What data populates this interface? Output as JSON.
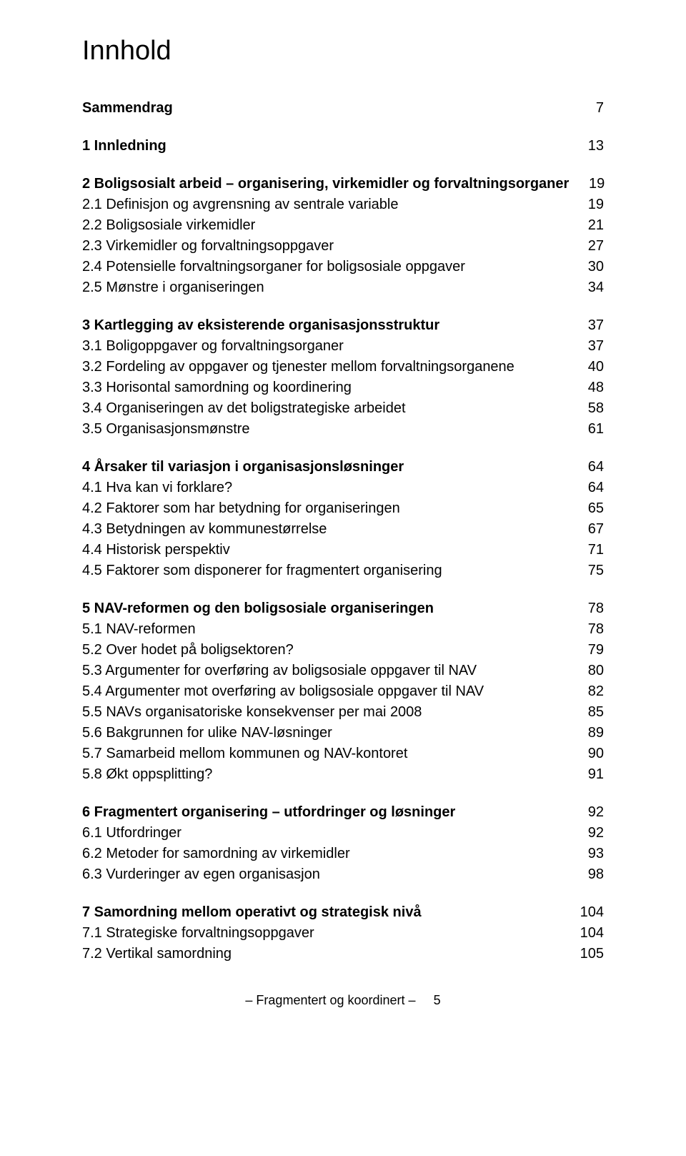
{
  "title": "Innhold",
  "footer_text": "– Fragmentert og koordinert –",
  "footer_page": "5",
  "typography": {
    "title_fontsize": 38,
    "body_fontsize": 20,
    "footer_fontsize": 18,
    "font_family": "Arial, Helvetica, sans-serif",
    "text_color": "#000000",
    "background_color": "#ffffff",
    "line_height": 1.45
  },
  "sections": [
    {
      "rows": [
        {
          "label": "Sammendrag",
          "page": "7",
          "bold": true
        }
      ]
    },
    {
      "rows": [
        {
          "label": "1 Innledning",
          "page": "13",
          "bold": true
        }
      ]
    },
    {
      "rows": [
        {
          "label": "2 Boligsosialt arbeid – organisering, virkemidler og forvaltningsorganer",
          "page": "19",
          "bold": true
        },
        {
          "label": "2.1 Definisjon og avgrensning av sentrale variable",
          "page": "19",
          "bold": false
        },
        {
          "label": "2.2 Boligsosiale virkemidler",
          "page": "21",
          "bold": false
        },
        {
          "label": "2.3 Virkemidler og forvaltningsoppgaver",
          "page": "27",
          "bold": false
        },
        {
          "label": "2.4 Potensielle forvaltningsorganer for boligsosiale oppgaver",
          "page": "30",
          "bold": false
        },
        {
          "label": "2.5 Mønstre i organiseringen",
          "page": "34",
          "bold": false
        }
      ]
    },
    {
      "rows": [
        {
          "label": "3 Kartlegging av eksisterende organisasjonsstruktur",
          "page": "37",
          "bold": true
        },
        {
          "label": "3.1 Boligoppgaver og forvaltningsorganer",
          "page": "37",
          "bold": false
        },
        {
          "label": "3.2 Fordeling av oppgaver og tjenester mellom forvaltningsorganene",
          "page": "40",
          "bold": false
        },
        {
          "label": "3.3 Horisontal samordning og koordinering",
          "page": "48",
          "bold": false
        },
        {
          "label": "3.4 Organiseringen av det boligstrategiske arbeidet",
          "page": "58",
          "bold": false
        },
        {
          "label": "3.5 Organisasjonsmønstre",
          "page": "61",
          "bold": false
        }
      ]
    },
    {
      "rows": [
        {
          "label": "4 Årsaker til variasjon i organisasjonsløsninger",
          "page": "64",
          "bold": true
        },
        {
          "label": "4.1 Hva kan vi forklare?",
          "page": "64",
          "bold": false
        },
        {
          "label": "4.2 Faktorer som har betydning for organiseringen",
          "page": "65",
          "bold": false
        },
        {
          "label": "4.3 Betydningen av kommunestørrelse",
          "page": "67",
          "bold": false
        },
        {
          "label": "4.4 Historisk perspektiv",
          "page": "71",
          "bold": false
        },
        {
          "label": "4.5 Faktorer som disponerer for fragmentert organisering",
          "page": "75",
          "bold": false
        }
      ]
    },
    {
      "rows": [
        {
          "label": "5 NAV-reformen og den boligsosiale organiseringen",
          "page": "78",
          "bold": true
        },
        {
          "label": "5.1 NAV-reformen",
          "page": "78",
          "bold": false
        },
        {
          "label": "5.2 Over hodet på boligsektoren?",
          "page": "79",
          "bold": false
        },
        {
          "label": "5.3 Argumenter for overføring av boligsosiale oppgaver til NAV",
          "page": "80",
          "bold": false
        },
        {
          "label": "5.4 Argumenter mot overføring av boligsosiale oppgaver til NAV",
          "page": "82",
          "bold": false
        },
        {
          "label": "5.5 NAVs organisatoriske konsekvenser per mai 2008",
          "page": "85",
          "bold": false
        },
        {
          "label": "5.6 Bakgrunnen for ulike NAV-løsninger",
          "page": "89",
          "bold": false
        },
        {
          "label": "5.7 Samarbeid mellom kommunen og NAV-kontoret",
          "page": "90",
          "bold": false
        },
        {
          "label": "5.8 Økt oppsplitting?",
          "page": "91",
          "bold": false
        }
      ]
    },
    {
      "rows": [
        {
          "label": "6 Fragmentert organisering – utfordringer og løsninger",
          "page": "92",
          "bold": true
        },
        {
          "label": "6.1 Utfordringer",
          "page": "92",
          "bold": false
        },
        {
          "label": "6.2 Metoder for samordning av virkemidler",
          "page": "93",
          "bold": false
        },
        {
          "label": "6.3 Vurderinger av egen organisasjon",
          "page": "98",
          "bold": false
        }
      ]
    },
    {
      "rows": [
        {
          "label": "7 Samordning mellom operativt og strategisk nivå",
          "page": "104",
          "bold": true
        },
        {
          "label": "7.1 Strategiske forvaltningsoppgaver",
          "page": "104",
          "bold": false
        },
        {
          "label": "7.2 Vertikal samordning",
          "page": "105",
          "bold": false
        }
      ]
    }
  ]
}
